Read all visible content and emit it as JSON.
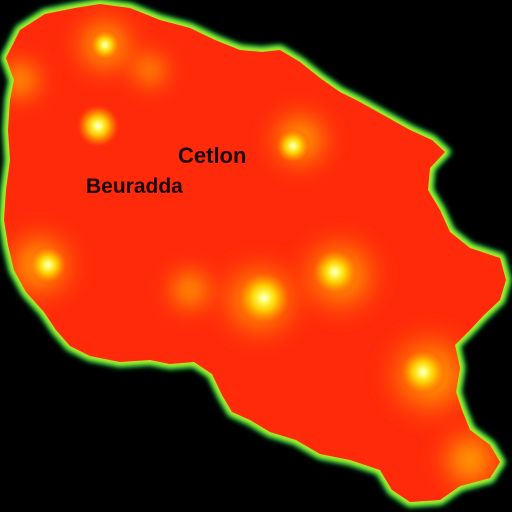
{
  "map": {
    "labels": {
      "city_1": "Cetlon",
      "city_2": "Beuradda"
    },
    "colors": {
      "background": "#000000",
      "region_fill": "#ff2a0a",
      "region_edge_glow": "#19ff66",
      "region_edge_inner": "#ffe600",
      "hotspot_core": "#ffffff",
      "hotspot_mid": "#ffff40",
      "hotspot_outer": "#ffaa00",
      "label_text": "#1a0000"
    }
  }
}
